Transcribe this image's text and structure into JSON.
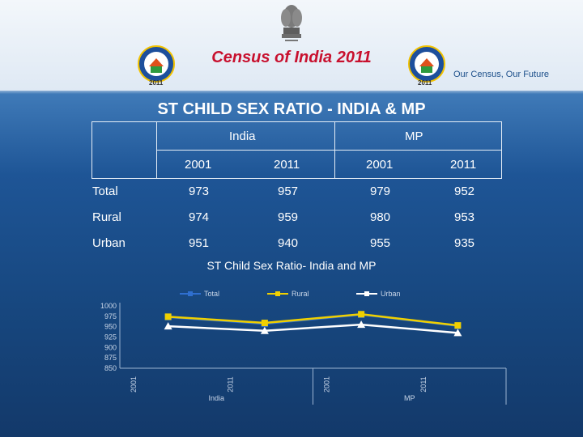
{
  "header": {
    "title": "Census of India  2011",
    "tagline": "Our Census,  Our Future",
    "logo_year": "2011"
  },
  "slide_title": "ST CHILD SEX RATIO - INDIA & MP",
  "table": {
    "group_headers": [
      "India",
      "MP"
    ],
    "year_headers": [
      "2001",
      "2011",
      "2001",
      "2011"
    ],
    "rows": [
      {
        "label": "Total",
        "values": [
          "973",
          "957",
          "979",
          "952"
        ]
      },
      {
        "label": "Rural",
        "values": [
          "974",
          "959",
          "980",
          "953"
        ]
      },
      {
        "label": "Urban",
        "values": [
          "951",
          "940",
          "955",
          "935"
        ]
      }
    ]
  },
  "chart_data": {
    "type": "line",
    "title": "ST Child Sex Ratio- India and MP",
    "categories": [
      "2001",
      "2011",
      "2001",
      "2011"
    ],
    "group_labels": [
      "India",
      "MP"
    ],
    "series": [
      {
        "name": "Total",
        "values": [
          973,
          957,
          979,
          952
        ],
        "color": "#2f6fd0"
      },
      {
        "name": "Rural",
        "values": [
          974,
          959,
          980,
          953
        ],
        "color": "#f0d000"
      },
      {
        "name": "Urban",
        "values": [
          951,
          940,
          955,
          935
        ],
        "color": "#ffffff"
      }
    ],
    "ylim": [
      850,
      1000
    ],
    "yticks": [
      1000,
      975,
      950,
      925,
      900,
      875,
      850
    ],
    "legend_position": "top"
  }
}
